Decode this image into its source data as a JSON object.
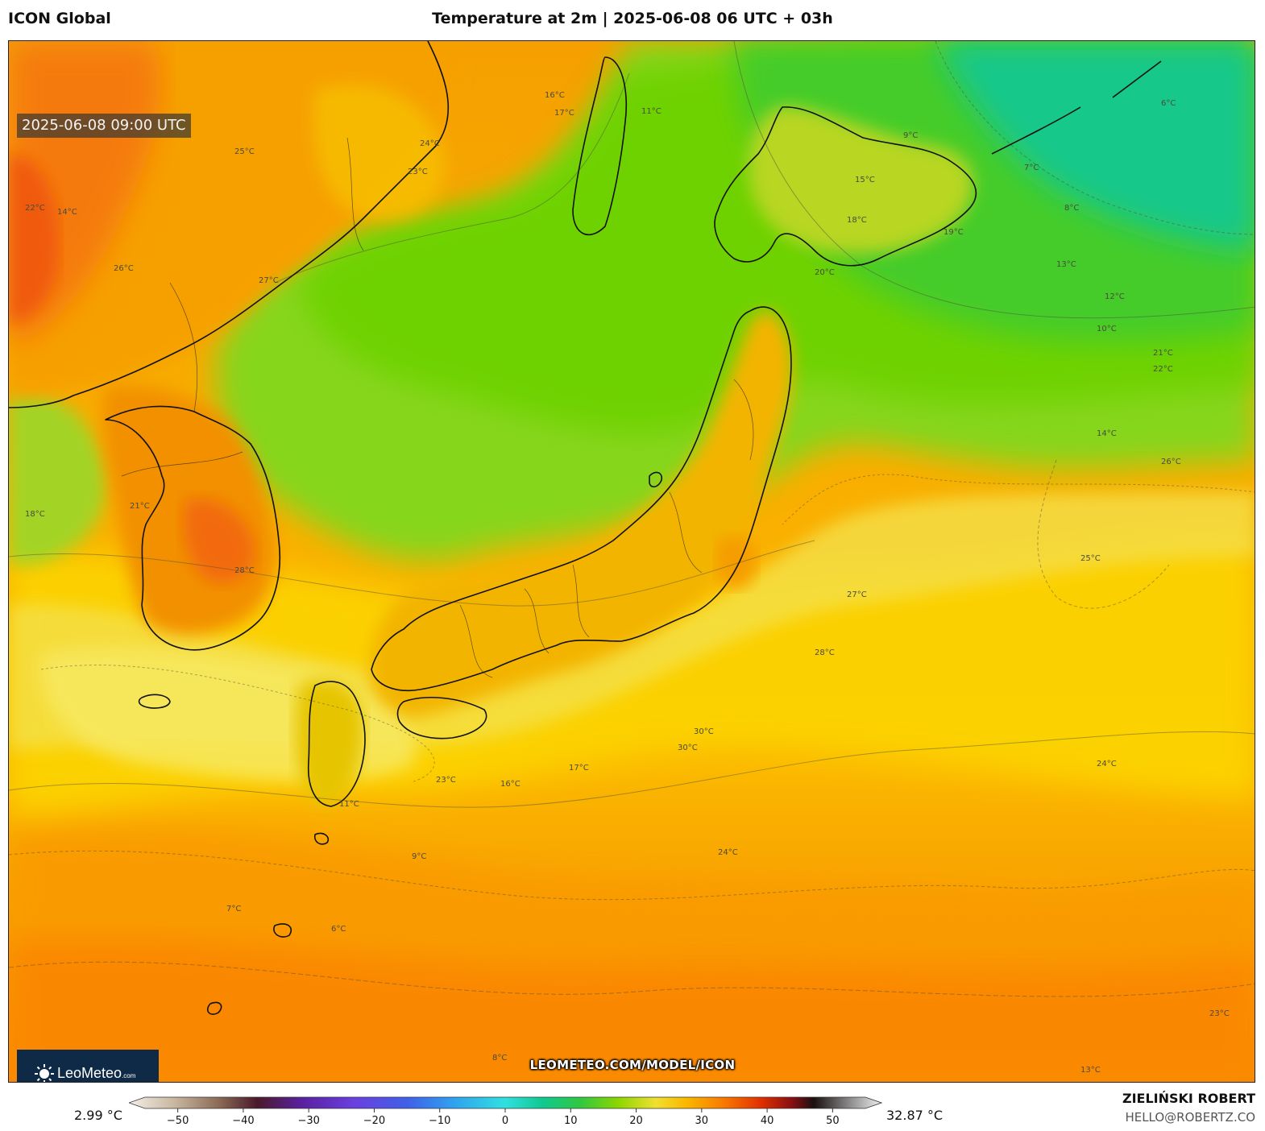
{
  "header": {
    "model": "ICON Global",
    "title": "Temperature at 2m | 2025-06-08 06 UTC + 03h"
  },
  "map": {
    "valid_time": "2025-06-08 09:00 UTC",
    "source_url": "LEOMETEO.COM/MODEL/ICON",
    "logo": {
      "name": "LeoMeteo",
      "suffix": ".com",
      "icon": "sun-icon"
    },
    "contour_labels": [
      "24°C",
      "23°C",
      "16°C",
      "17°C",
      "11°C",
      "9°C",
      "6°C",
      "7°C",
      "8°C",
      "13°C",
      "12°C",
      "10°C",
      "19°C",
      "20°C",
      "15°C",
      "18°C",
      "21°C",
      "22°C",
      "14°C",
      "26°C",
      "25°C",
      "27°C",
      "28°C",
      "30°C"
    ],
    "colors": {
      "hot_orange": "#ff7a00",
      "warm_yellow": "#ffd400",
      "mild_green": "#7cd400",
      "cool_teal": "#10c890"
    }
  },
  "colorbar": {
    "min_value": "2.99 °C",
    "max_value": "32.87 °C",
    "ticks": [
      "−50",
      "−40",
      "−30",
      "−20",
      "−10",
      "0",
      "10",
      "20",
      "30",
      "40",
      "50"
    ],
    "tick_values": [
      -50,
      -40,
      -30,
      -20,
      -10,
      0,
      10,
      20,
      30,
      40,
      50
    ],
    "range": [
      -55,
      55
    ]
  },
  "footer": {
    "author": "ZIELIŃSKI ROBERT",
    "email": "HELLO@ROBERTZ.CO"
  }
}
